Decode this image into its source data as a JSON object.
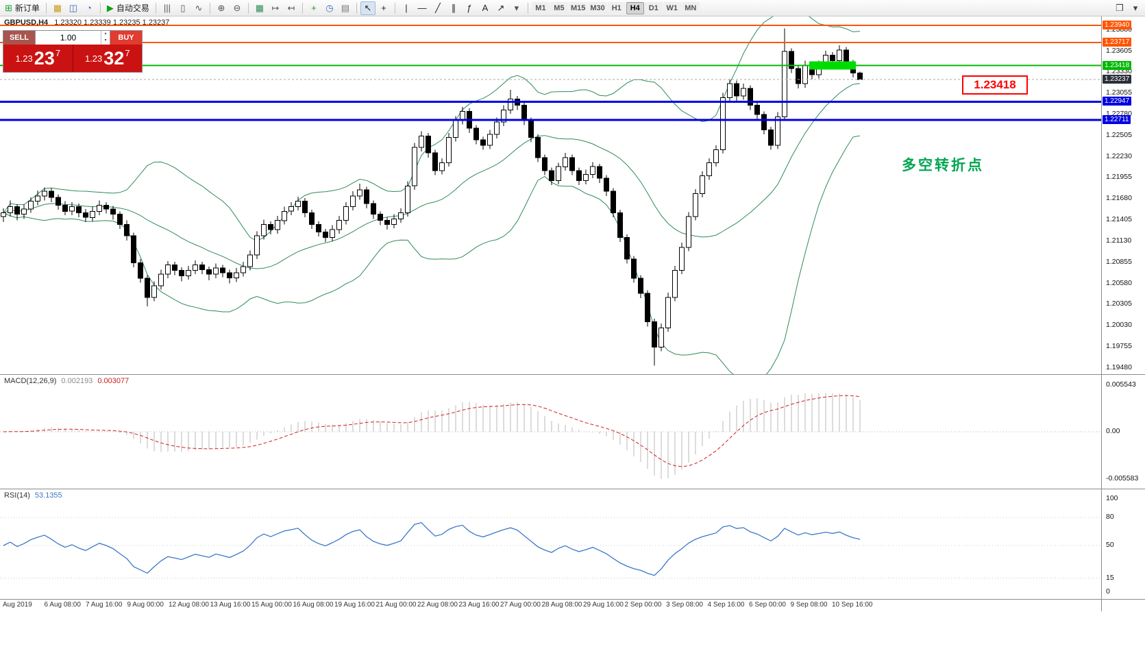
{
  "toolbar": {
    "items": [
      {
        "kind": "button",
        "name": "new-order-button",
        "glyph": "⊞",
        "color": "#18a038",
        "label": "新订单"
      },
      {
        "kind": "sep"
      },
      {
        "kind": "button",
        "name": "new-chart-button",
        "glyph": "▦",
        "color": "#c89b18"
      },
      {
        "kind": "button",
        "name": "profiles-button",
        "glyph": "◫",
        "color": "#3b6db5"
      },
      {
        "kind": "button",
        "name": "data-window-button",
        "glyph": "◔",
        "color": "#3b6db5"
      },
      {
        "kind": "sep"
      },
      {
        "kind": "button",
        "name": "autotrading-button",
        "glyph": "▶",
        "color": "#14a014",
        "label": "自动交易"
      },
      {
        "kind": "sep"
      },
      {
        "kind": "button",
        "name": "bar-chart-button",
        "glyph": "|||",
        "color": "#555555"
      },
      {
        "kind": "button",
        "name": "candlestick-chart-button",
        "glyph": "▯",
        "color": "#555555"
      },
      {
        "kind": "button",
        "name": "line-chart-button",
        "glyph": "∿",
        "color": "#555555"
      },
      {
        "kind": "sep"
      },
      {
        "kind": "button",
        "name": "zoom-in-button",
        "glyph": "⊕",
        "color": "#555555"
      },
      {
        "kind": "button",
        "name": "zoom-out-button",
        "glyph": "⊖",
        "color": "#555555"
      },
      {
        "kind": "sep"
      },
      {
        "kind": "button",
        "name": "templates-button",
        "glyph": "▦",
        "color": "#2e8b57"
      },
      {
        "kind": "button",
        "name": "auto-scroll-button",
        "glyph": "↦",
        "color": "#555555"
      },
      {
        "kind": "button",
        "name": "chart-shift-button",
        "glyph": "↤",
        "color": "#555555"
      },
      {
        "kind": "sep"
      },
      {
        "kind": "button",
        "name": "indicators-button",
        "glyph": "+",
        "color": "#14a014"
      },
      {
        "kind": "button",
        "name": "periods-button",
        "glyph": "◷",
        "color": "#3b6db5"
      },
      {
        "kind": "button",
        "name": "templates-list-button",
        "glyph": "▤",
        "color": "#777777"
      },
      {
        "kind": "sep"
      },
      {
        "kind": "button",
        "name": "cursor-button",
        "glyph": "↖",
        "color": "#222222",
        "active": true
      },
      {
        "kind": "button",
        "name": "crosshair-button",
        "glyph": "+",
        "color": "#222222"
      },
      {
        "kind": "sep"
      },
      {
        "kind": "button",
        "name": "vertical-line-button",
        "glyph": "|",
        "color": "#222222"
      },
      {
        "kind": "button",
        "name": "horizontal-line-button",
        "glyph": "—",
        "color": "#222222"
      },
      {
        "kind": "button",
        "name": "trendline-button",
        "glyph": "╱",
        "color": "#222222"
      },
      {
        "kind": "button",
        "name": "equidistant-channel-button",
        "glyph": "∥",
        "color": "#222222"
      },
      {
        "kind": "button",
        "name": "fibonacci-button",
        "glyph": "ƒ",
        "color": "#222222"
      },
      {
        "kind": "button",
        "name": "text-button",
        "glyph": "A",
        "color": "#222222"
      },
      {
        "kind": "button",
        "name": "arrows-button",
        "glyph": "↗",
        "color": "#222222"
      },
      {
        "kind": "button",
        "name": "more-tools-button",
        "glyph": "▾",
        "color": "#555555"
      },
      {
        "kind": "sep"
      },
      {
        "kind": "timeframes"
      },
      {
        "kind": "spacer"
      },
      {
        "kind": "button",
        "name": "window-arrange-button",
        "glyph": "❐",
        "color": "#444444"
      },
      {
        "kind": "button",
        "name": "toolbar-menu-button",
        "glyph": "▾",
        "color": "#444444"
      }
    ],
    "timeframes": {
      "options": [
        "M1",
        "M5",
        "M15",
        "M30",
        "H1",
        "H4",
        "D1",
        "W1",
        "MN"
      ],
      "active": "H4"
    }
  },
  "quote_header": {
    "symbol": "GBPUSD,H4",
    "values": "1.23320 1.23339 1.23235 1.23237"
  },
  "trade_widget": {
    "sell_label": "SELL",
    "buy_label": "BUY",
    "volume": "1.00",
    "sell_price": {
      "prefix": "1.23",
      "big": "23",
      "sup": "7"
    },
    "buy_price": {
      "prefix": "1.23",
      "big": "32",
      "sup": "7"
    }
  },
  "annotations": {
    "turning_point": "多空转折点",
    "price_callout": "1.23418"
  },
  "time_axis": {
    "labels": [
      "Aug 2019",
      "6 Aug 08:00",
      "7 Aug 16:00",
      "9 Aug 00:00",
      "12 Aug 08:00",
      "13 Aug 16:00",
      "15 Aug 00:00",
      "16 Aug 08:00",
      "19 Aug 16:00",
      "21 Aug 00:00",
      "22 Aug 08:00",
      "23 Aug 16:00",
      "27 Aug 00:00",
      "28 Aug 08:00",
      "29 Aug 16:00",
      "2 Sep 00:00",
      "3 Sep 08:00",
      "4 Sep 16:00",
      "6 Sep 00:00",
      "9 Sep 08:00",
      "10 Sep 16:00"
    ]
  },
  "chart_data": [
    {
      "type": "candlestick",
      "symbol": "GBPUSD",
      "timeframe": "H4",
      "colors": {
        "up_fill": "#ffffff",
        "down_fill": "#000000",
        "outline": "#000000",
        "bollinger": "#2e8b57"
      },
      "price_axis": {
        "max": 1.24056,
        "min": 1.19399,
        "tick_labels": [
          "1.23880",
          "1.23605",
          "1.23330",
          "1.23055",
          "1.22780",
          "1.22505",
          "1.22230",
          "1.21955",
          "1.21680",
          "1.21405",
          "1.21130",
          "1.20855",
          "1.20580",
          "1.20305",
          "1.20030",
          "1.19755",
          "1.19480"
        ]
      },
      "bollinger": {
        "period": 20,
        "deviation": 2
      },
      "hlines": [
        {
          "price": 1.2394,
          "label": "1.23940",
          "color": "#ff5500",
          "width": 2
        },
        {
          "price": 1.23717,
          "label": "1.23717",
          "color": "#ff5500",
          "width": 2
        },
        {
          "price": 1.23418,
          "label": "1.23418",
          "color": "#00b800",
          "width": 2
        },
        {
          "price": 1.22947,
          "label": "1.22947",
          "color": "#0000e0",
          "width": 3
        },
        {
          "price": 1.22711,
          "label": "1.22711",
          "color": "#0000e0",
          "width": 3
        }
      ],
      "current_price": {
        "value": 1.23237,
        "label": "1.23237",
        "badge_color": "#2b2f38"
      },
      "highlight_zone": {
        "price": 1.23418,
        "from_index": 118,
        "to_index": 124,
        "color": "#00dc00"
      },
      "candles": [
        [
          1.2145,
          1.2156,
          1.2138,
          1.215
        ],
        [
          1.215,
          1.2166,
          1.2145,
          1.2158
        ],
        [
          1.2158,
          1.2161,
          1.214,
          1.2148
        ],
        [
          1.2148,
          1.2161,
          1.2142,
          1.2155
        ],
        [
          1.2155,
          1.217,
          1.215,
          1.2165
        ],
        [
          1.2165,
          1.2179,
          1.216,
          1.2172
        ],
        [
          1.2172,
          1.2183,
          1.2166,
          1.2178
        ],
        [
          1.2178,
          1.2182,
          1.2164,
          1.217
        ],
        [
          1.217,
          1.2174,
          1.2154,
          1.216
        ],
        [
          1.216,
          1.2165,
          1.2147,
          1.2152
        ],
        [
          1.2152,
          1.2164,
          1.2147,
          1.2158
        ],
        [
          1.2158,
          1.2162,
          1.2144,
          1.215
        ],
        [
          1.215,
          1.2155,
          1.2138,
          1.2144
        ],
        [
          1.2144,
          1.2158,
          1.2139,
          1.2152
        ],
        [
          1.2152,
          1.2166,
          1.2147,
          1.216
        ],
        [
          1.216,
          1.2164,
          1.2149,
          1.2155
        ],
        [
          1.2155,
          1.2159,
          1.2141,
          1.2148
        ],
        [
          1.2148,
          1.2152,
          1.2129,
          1.2135
        ],
        [
          1.2135,
          1.214,
          1.2114,
          1.212
        ],
        [
          1.212,
          1.2124,
          1.2079,
          1.2085
        ],
        [
          1.2085,
          1.209,
          1.2059,
          1.2065
        ],
        [
          1.2065,
          1.2069,
          1.2028,
          1.204
        ],
        [
          1.204,
          1.2061,
          1.2035,
          1.2055
        ],
        [
          1.2055,
          1.2076,
          1.205,
          1.207
        ],
        [
          1.207,
          1.2087,
          1.2065,
          1.2082
        ],
        [
          1.2082,
          1.2086,
          1.2069,
          1.2075
        ],
        [
          1.2075,
          1.2079,
          1.2061,
          1.2068
        ],
        [
          1.2068,
          1.2081,
          1.2063,
          1.2075
        ],
        [
          1.2075,
          1.2088,
          1.207,
          1.2082
        ],
        [
          1.2082,
          1.2086,
          1.207,
          1.2076
        ],
        [
          1.2076,
          1.208,
          1.2062,
          1.207
        ],
        [
          1.207,
          1.2084,
          1.2065,
          1.2078
        ],
        [
          1.2078,
          1.2082,
          1.2066,
          1.2072
        ],
        [
          1.2072,
          1.2076,
          1.2058,
          1.2065
        ],
        [
          1.2065,
          1.2078,
          1.206,
          1.2072
        ],
        [
          1.2072,
          1.2086,
          1.2067,
          1.208
        ],
        [
          1.208,
          1.2101,
          1.2075,
          1.2095
        ],
        [
          1.2095,
          1.2126,
          1.209,
          1.212
        ],
        [
          1.212,
          1.2141,
          1.2115,
          1.2135
        ],
        [
          1.2135,
          1.2139,
          1.2122,
          1.2128
        ],
        [
          1.2128,
          1.2146,
          1.2123,
          1.214
        ],
        [
          1.214,
          1.2158,
          1.2135,
          1.2152
        ],
        [
          1.2152,
          1.2164,
          1.2147,
          1.2158
        ],
        [
          1.2158,
          1.2171,
          1.2153,
          1.2165
        ],
        [
          1.2165,
          1.2169,
          1.2144,
          1.215
        ],
        [
          1.215,
          1.2154,
          1.2129,
          1.2135
        ],
        [
          1.2135,
          1.2139,
          1.2119,
          1.2125
        ],
        [
          1.2125,
          1.2129,
          1.2112,
          1.2118
        ],
        [
          1.2118,
          1.2134,
          1.2113,
          1.2128
        ],
        [
          1.2128,
          1.2146,
          1.2123,
          1.214
        ],
        [
          1.214,
          1.2164,
          1.2135,
          1.2158
        ],
        [
          1.2158,
          1.2178,
          1.2153,
          1.2172
        ],
        [
          1.2172,
          1.2188,
          1.2167,
          1.218
        ],
        [
          1.218,
          1.2184,
          1.2156,
          1.2162
        ],
        [
          1.2162,
          1.2166,
          1.2142,
          1.2148
        ],
        [
          1.2148,
          1.2152,
          1.2134,
          1.214
        ],
        [
          1.214,
          1.2144,
          1.2128,
          1.2135
        ],
        [
          1.2135,
          1.2148,
          1.213,
          1.2142
        ],
        [
          1.2142,
          1.2156,
          1.2137,
          1.215
        ],
        [
          1.215,
          1.2191,
          1.2145,
          1.2185
        ],
        [
          1.2185,
          1.2241,
          1.218,
          1.2235
        ],
        [
          1.2235,
          1.2256,
          1.223,
          1.225
        ],
        [
          1.225,
          1.2254,
          1.2222,
          1.2228
        ],
        [
          1.2228,
          1.2232,
          1.2199,
          1.2205
        ],
        [
          1.2205,
          1.2221,
          1.22,
          1.2215
        ],
        [
          1.2215,
          1.2254,
          1.221,
          1.2248
        ],
        [
          1.2248,
          1.2276,
          1.2243,
          1.227
        ],
        [
          1.227,
          1.2288,
          1.2265,
          1.2282
        ],
        [
          1.2282,
          1.2286,
          1.2254,
          1.226
        ],
        [
          1.226,
          1.2264,
          1.2239,
          1.2245
        ],
        [
          1.2245,
          1.2249,
          1.2232,
          1.2238
        ],
        [
          1.2238,
          1.2258,
          1.2233,
          1.2252
        ],
        [
          1.2252,
          1.2274,
          1.2247,
          1.2268
        ],
        [
          1.2268,
          1.229,
          1.2263,
          1.2284
        ],
        [
          1.2284,
          1.231,
          1.2279,
          1.2298
        ],
        [
          1.2298,
          1.2302,
          1.2284,
          1.229
        ],
        [
          1.229,
          1.2294,
          1.2264,
          1.227
        ],
        [
          1.227,
          1.2274,
          1.2242,
          1.2248
        ],
        [
          1.2248,
          1.2252,
          1.2216,
          1.2222
        ],
        [
          1.2222,
          1.2226,
          1.2199,
          1.2205
        ],
        [
          1.2205,
          1.2209,
          1.2186,
          1.2192
        ],
        [
          1.2192,
          1.2215,
          1.2187,
          1.221
        ],
        [
          1.221,
          1.2228,
          1.2205,
          1.2222
        ],
        [
          1.2222,
          1.2226,
          1.2199,
          1.2205
        ],
        [
          1.2205,
          1.2209,
          1.2186,
          1.2192
        ],
        [
          1.2192,
          1.2206,
          1.2187,
          1.22
        ],
        [
          1.22,
          1.2216,
          1.2195,
          1.221
        ],
        [
          1.221,
          1.2214,
          1.2189,
          1.2195
        ],
        [
          1.2195,
          1.2199,
          1.2172,
          1.2178
        ],
        [
          1.2178,
          1.2182,
          1.2144,
          1.215
        ],
        [
          1.215,
          1.2154,
          1.2112,
          1.2118
        ],
        [
          1.2118,
          1.2122,
          1.2084,
          1.209
        ],
        [
          1.209,
          1.2094,
          1.2059,
          1.2065
        ],
        [
          1.2065,
          1.2069,
          1.2039,
          1.2045
        ],
        [
          1.2045,
          1.2049,
          1.2002,
          1.2008
        ],
        [
          1.2008,
          1.2012,
          1.1951,
          1.1975
        ],
        [
          1.1975,
          1.2006,
          1.197,
          1.2
        ],
        [
          1.2,
          1.2046,
          1.1995,
          1.204
        ],
        [
          1.204,
          1.2081,
          1.2035,
          1.2075
        ],
        [
          1.2075,
          1.2111,
          1.207,
          1.2105
        ],
        [
          1.2105,
          1.2151,
          1.21,
          1.2145
        ],
        [
          1.2145,
          1.2181,
          1.214,
          1.2175
        ],
        [
          1.2175,
          1.2204,
          1.217,
          1.2198
        ],
        [
          1.2198,
          1.2221,
          1.2193,
          1.2215
        ],
        [
          1.2215,
          1.2238,
          1.221,
          1.2232
        ],
        [
          1.2232,
          1.2306,
          1.2227,
          1.23
        ],
        [
          1.23,
          1.2324,
          1.2295,
          1.2318
        ],
        [
          1.2318,
          1.2322,
          1.2296,
          1.2302
        ],
        [
          1.2302,
          1.2318,
          1.2297,
          1.2312
        ],
        [
          1.2312,
          1.2316,
          1.2284,
          1.229
        ],
        [
          1.229,
          1.2294,
          1.2272,
          1.2278
        ],
        [
          1.2278,
          1.2282,
          1.2252,
          1.2258
        ],
        [
          1.2258,
          1.2262,
          1.2232,
          1.2238
        ],
        [
          1.2238,
          1.2281,
          1.2233,
          1.2275
        ],
        [
          1.2275,
          1.239,
          1.227,
          1.236
        ],
        [
          1.236,
          1.2364,
          1.2332,
          1.2338
        ],
        [
          1.2338,
          1.2342,
          1.2312,
          1.2318
        ],
        [
          1.2318,
          1.2348,
          1.2313,
          1.2342
        ],
        [
          1.2342,
          1.2346,
          1.2324,
          1.233
        ],
        [
          1.233,
          1.2348,
          1.2325,
          1.2342
        ],
        [
          1.2342,
          1.2361,
          1.2337,
          1.2355
        ],
        [
          1.2355,
          1.2359,
          1.2342,
          1.2348
        ],
        [
          1.2348,
          1.2368,
          1.2343,
          1.2362
        ],
        [
          1.2362,
          1.2366,
          1.2339,
          1.2345
        ],
        [
          1.2345,
          1.2349,
          1.2326,
          1.2332
        ],
        [
          1.2332,
          1.23339,
          1.23235,
          1.23237
        ]
      ]
    },
    {
      "type": "macd",
      "label": "MACD(12,26,9)",
      "value_main": "0.002193",
      "value_signal": "0.003077",
      "params": {
        "fast": 12,
        "slow": 26,
        "signal": 9
      },
      "axis_labels": [
        "0.005543",
        "0.00",
        "-0.005583"
      ],
      "colors": {
        "histogram": "#b8b8b8",
        "signal": "#d02020"
      }
    },
    {
      "type": "rsi",
      "label": "RSI(14)",
      "value": "53.1355",
      "period": 14,
      "levels": [
        80,
        50,
        15
      ],
      "axis_labels": [
        {
          "value": 100,
          "text": "100"
        },
        {
          "value": 80,
          "text": "80"
        },
        {
          "value": 50,
          "text": "50"
        },
        {
          "value": 15,
          "text": "15"
        },
        {
          "value": 0,
          "text": "0"
        }
      ],
      "color": "#3b78c8"
    }
  ]
}
